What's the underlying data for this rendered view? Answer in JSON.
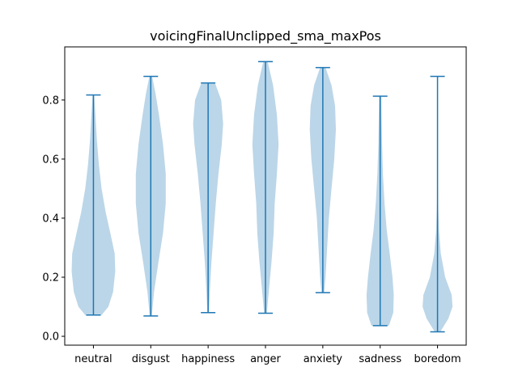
{
  "chart_data": {
    "type": "violin",
    "title": "voicingFinalUnclipped_sma_maxPos",
    "xlabel": "",
    "ylabel": "",
    "categories": [
      "neutral",
      "disgust",
      "happiness",
      "anger",
      "anxiety",
      "sadness",
      "boredom"
    ],
    "ylim": [
      -0.03,
      0.98
    ],
    "yticks": [
      "0.0",
      "0.2",
      "0.4",
      "0.6",
      "0.8"
    ],
    "grid": false,
    "colors": {
      "body": "#1f77b4",
      "body_opacity": 0.3,
      "line": "#1f77b4"
    },
    "series": [
      {
        "min": 0.072,
        "max": 0.817,
        "density": [
          [
            0.072,
            0.3
          ],
          [
            0.1,
            0.55
          ],
          [
            0.15,
            0.72
          ],
          [
            0.22,
            0.8
          ],
          [
            0.28,
            0.78
          ],
          [
            0.35,
            0.62
          ],
          [
            0.42,
            0.45
          ],
          [
            0.5,
            0.3
          ],
          [
            0.58,
            0.2
          ],
          [
            0.66,
            0.13
          ],
          [
            0.74,
            0.08
          ],
          [
            0.817,
            0.03
          ]
        ]
      },
      {
        "min": 0.069,
        "max": 0.88,
        "density": [
          [
            0.069,
            0.04
          ],
          [
            0.15,
            0.12
          ],
          [
            0.25,
            0.28
          ],
          [
            0.35,
            0.45
          ],
          [
            0.45,
            0.55
          ],
          [
            0.55,
            0.55
          ],
          [
            0.65,
            0.45
          ],
          [
            0.75,
            0.3
          ],
          [
            0.82,
            0.18
          ],
          [
            0.88,
            0.05
          ]
        ]
      },
      {
        "min": 0.08,
        "max": 0.858,
        "density": [
          [
            0.08,
            0.03
          ],
          [
            0.15,
            0.06
          ],
          [
            0.25,
            0.12
          ],
          [
            0.35,
            0.2
          ],
          [
            0.45,
            0.28
          ],
          [
            0.55,
            0.38
          ],
          [
            0.65,
            0.5
          ],
          [
            0.72,
            0.55
          ],
          [
            0.8,
            0.48
          ],
          [
            0.858,
            0.25
          ]
        ]
      },
      {
        "min": 0.078,
        "max": 0.93,
        "density": [
          [
            0.078,
            0.05
          ],
          [
            0.15,
            0.12
          ],
          [
            0.25,
            0.22
          ],
          [
            0.35,
            0.3
          ],
          [
            0.45,
            0.34
          ],
          [
            0.55,
            0.42
          ],
          [
            0.65,
            0.48
          ],
          [
            0.75,
            0.42
          ],
          [
            0.85,
            0.28
          ],
          [
            0.93,
            0.08
          ]
        ]
      },
      {
        "min": 0.148,
        "max": 0.91,
        "density": [
          [
            0.148,
            0.05
          ],
          [
            0.2,
            0.1
          ],
          [
            0.3,
            0.16
          ],
          [
            0.4,
            0.22
          ],
          [
            0.5,
            0.32
          ],
          [
            0.6,
            0.42
          ],
          [
            0.7,
            0.48
          ],
          [
            0.78,
            0.45
          ],
          [
            0.85,
            0.32
          ],
          [
            0.91,
            0.1
          ]
        ]
      },
      {
        "min": 0.036,
        "max": 0.813,
        "density": [
          [
            0.036,
            0.32
          ],
          [
            0.08,
            0.48
          ],
          [
            0.14,
            0.5
          ],
          [
            0.2,
            0.45
          ],
          [
            0.28,
            0.35
          ],
          [
            0.36,
            0.24
          ],
          [
            0.45,
            0.16
          ],
          [
            0.55,
            0.1
          ],
          [
            0.65,
            0.07
          ],
          [
            0.75,
            0.05
          ],
          [
            0.813,
            0.04
          ]
        ]
      },
      {
        "min": 0.015,
        "max": 0.88,
        "density": [
          [
            0.015,
            0.1
          ],
          [
            0.06,
            0.4
          ],
          [
            0.1,
            0.55
          ],
          [
            0.14,
            0.52
          ],
          [
            0.2,
            0.28
          ],
          [
            0.28,
            0.12
          ],
          [
            0.36,
            0.05
          ],
          [
            0.45,
            0.02
          ],
          [
            0.6,
            0.005
          ],
          [
            0.88,
            0.0
          ]
        ]
      }
    ]
  }
}
